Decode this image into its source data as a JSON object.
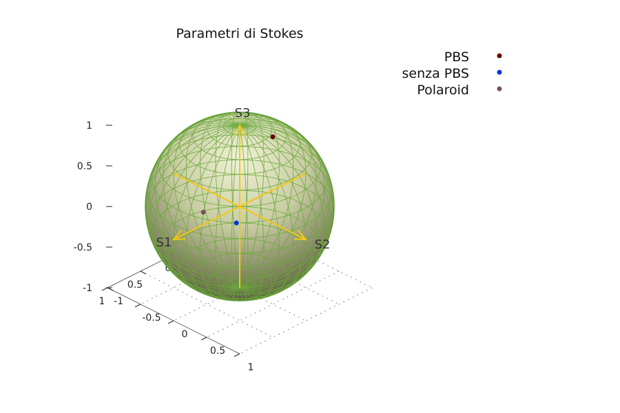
{
  "chart_data": {
    "type": "scatter",
    "title": "Parametri di Stokes",
    "axes": {
      "x": "S1",
      "y": "S2",
      "z": "S3"
    },
    "z_ticks": [
      "1",
      "0.5",
      "0",
      "-0.5",
      "-1"
    ],
    "x_ticks": [
      "-1",
      "-0.5",
      "0",
      "0.5",
      "1"
    ],
    "y_ticks": [
      "1",
      "0.5",
      "0",
      "-0.5",
      "-1"
    ],
    "xlim": [
      -1,
      1
    ],
    "ylim": [
      -1,
      1
    ],
    "zlim": [
      -1,
      1
    ],
    "legend_position": "top-right",
    "sphere_color": "#6a9e3a",
    "arrow_color": "#f5c518",
    "series": [
      {
        "name": "PBS",
        "color": "#6b0000",
        "points": [
          {
            "x": -0.42,
            "y": 0.08,
            "z": 0.72
          }
        ]
      },
      {
        "name": "senza PBS",
        "color": "#0033dd",
        "points": [
          {
            "x": 0.2,
            "y": 0.15,
            "z": -0.06
          }
        ]
      },
      {
        "name": "Polaroid",
        "color": "#7a4e5e",
        "points": [
          {
            "x": 0.3,
            "y": -0.25,
            "z": -0.05
          }
        ]
      }
    ]
  }
}
